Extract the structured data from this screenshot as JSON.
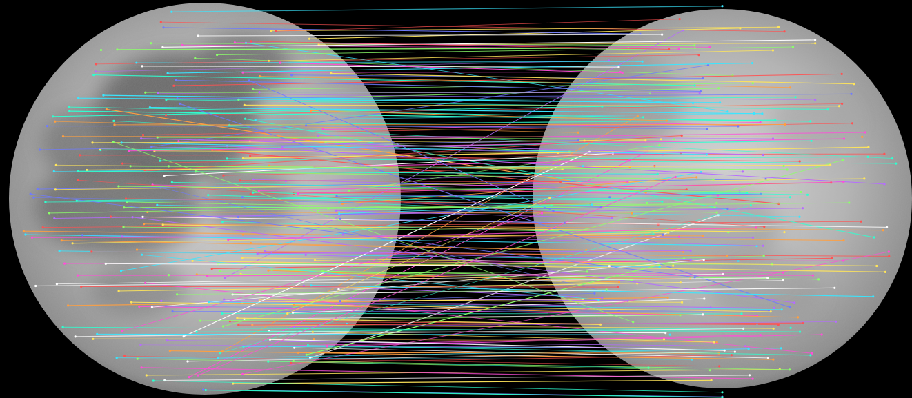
{
  "image": {
    "background_color": "#000000",
    "moon_base_color": "#a9a9a9",
    "moon_light_color": "#d6d6d6",
    "moon_mare_color": "#5f5f5f",
    "moon_rim_color": "#3c3c3c",
    "match_line_colors": [
      "#ff4fd8",
      "#39e6ff",
      "#8cff6a",
      "#ff5252",
      "#6f7bff",
      "#ffe55a",
      "#b56cff",
      "#2fffd0",
      "#ff9f40",
      "#ffffff"
    ],
    "match_line_count": 260
  }
}
